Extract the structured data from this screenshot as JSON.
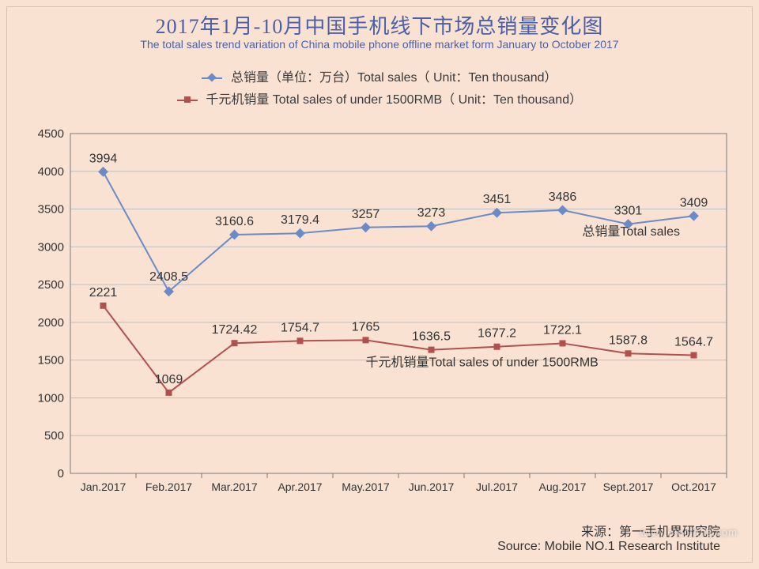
{
  "title_cn": "2017年1月-10月中国手机线下市场总销量变化图",
  "title_en": "The total sales trend variation of China mobile phone offline market form January to October 2017",
  "legend": {
    "series1": "总销量（单位：万台）Total sales（ Unit：Ten thousand）",
    "series2": "千元机销量 Total sales of under 1500RMB（ Unit：Ten thousand）"
  },
  "footer": {
    "cn": "来源：第一手机界研究院",
    "en": "Source: Mobile NO.1 Research Institute"
  },
  "watermark": "www.elecfans.com",
  "chart": {
    "type": "line",
    "background_color": "#f9e2d2",
    "plot_border_color": "#7a7a7a",
    "grid_color": "#bfbfbf",
    "ylim": [
      0,
      4500
    ],
    "ytick_step": 500,
    "yticks": [
      0,
      500,
      1000,
      1500,
      2000,
      2500,
      3000,
      3500,
      4000,
      4500
    ],
    "categories": [
      "Jan.2017",
      "Feb.2017",
      "Mar.2017",
      "Apr.2017",
      "May.2017",
      "Jun.2017",
      "Jul.2017",
      "Aug.2017",
      "Sept.2017",
      "Oct.2017"
    ],
    "series": [
      {
        "name": "总销量Total sales",
        "color": "#6a8bc8",
        "marker": "diamond",
        "marker_size": 9,
        "line_width": 2,
        "values": [
          3994,
          2408.5,
          3160.6,
          3179.4,
          3257,
          3273,
          3451,
          3486,
          3301,
          3409
        ],
        "value_labels": [
          "3994",
          "2408.5",
          "3160.6",
          "3179.4",
          "3257",
          "3273",
          "3451",
          "3486",
          "3301",
          "3409"
        ],
        "inline_label": "总销量Total sales",
        "inline_label_x_index": 7.3,
        "inline_label_y": 3150
      },
      {
        "name": "千元机销量Total sales of under 1500RMB",
        "color": "#b25050",
        "marker": "square",
        "marker_size": 8,
        "line_width": 2,
        "values": [
          2221,
          1069,
          1724.42,
          1754.7,
          1765,
          1636.5,
          1677.2,
          1722.1,
          1587.8,
          1564.7
        ],
        "value_labels": [
          "2221",
          "1069",
          "1724.42",
          "1754.7",
          "1765",
          "1636.5",
          "1677.2",
          "1722.1",
          "1587.8",
          "1564.7"
        ],
        "inline_label": "千元机销量Total sales of under 1500RMB",
        "inline_label_x_index": 4.0,
        "inline_label_y": 1420
      }
    ],
    "label_fontsize": 16,
    "axis_fontsize": 15
  }
}
